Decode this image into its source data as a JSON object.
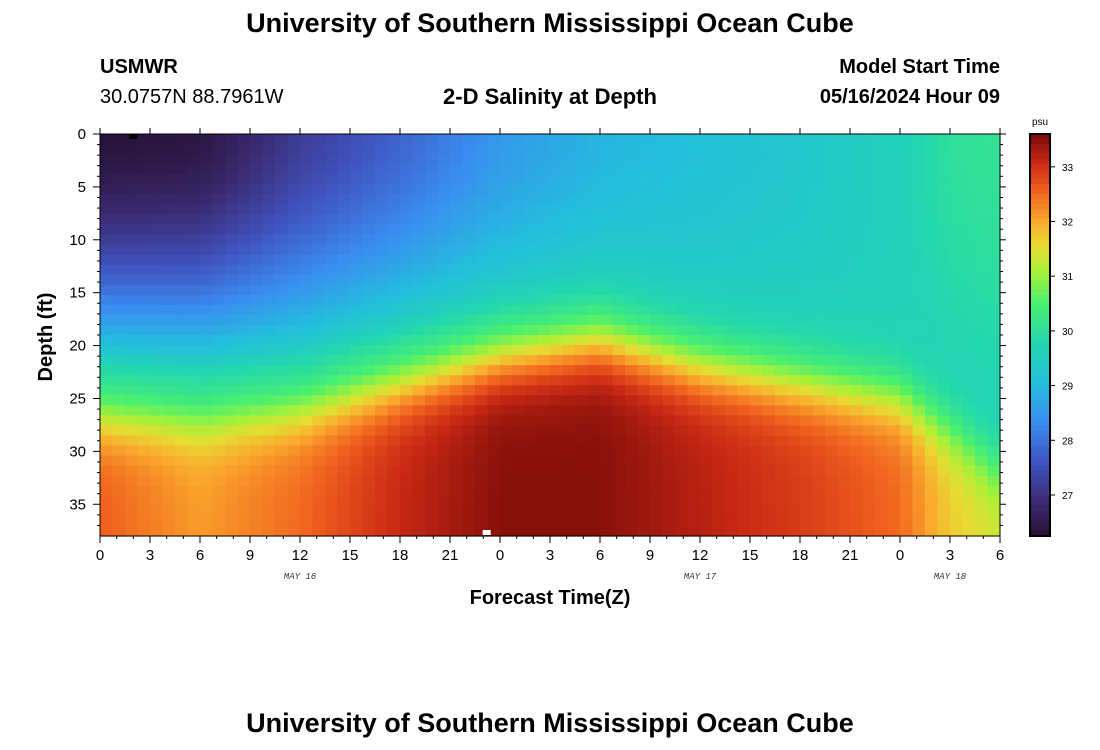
{
  "header": {
    "title": "University of Southern Mississippi Ocean Cube",
    "station": "USMWR",
    "coords": "30.0757N  88.7961W",
    "subtitle": "2-D Salinity at Depth",
    "model_start_label": "Model Start Time",
    "model_start_time": "05/16/2024 Hour 09"
  },
  "footer": {
    "title": "University of Southern Mississippi Ocean Cube"
  },
  "chart_data": {
    "type": "heatmap",
    "title": "2-D Salinity at Depth",
    "xlabel": "Forecast Time(Z)",
    "ylabel": "Depth (ft)",
    "x_range": [
      0,
      54
    ],
    "y_range": [
      0,
      38
    ],
    "y_inverted": true,
    "x_ticks": [
      "0",
      "3",
      "6",
      "9",
      "12",
      "15",
      "18",
      "21",
      "0",
      "3",
      "6",
      "9",
      "12",
      "15",
      "18",
      "21",
      "0",
      "3",
      "6"
    ],
    "y_ticks": [
      0,
      5,
      10,
      15,
      20,
      25,
      30,
      35
    ],
    "date_labels": [
      {
        "text": "MAY 16",
        "x_hour": 12
      },
      {
        "text": "MAY 17",
        "x_hour": 36
      },
      {
        "text": "MAY 18",
        "x_hour": 51
      }
    ],
    "colorbar": {
      "unit": "psu",
      "range": [
        26.25,
        33.6
      ],
      "ticks": [
        27,
        28,
        29,
        30,
        31,
        32,
        33
      ],
      "colormap": "turbo-like"
    },
    "halocline_depth_ft": [
      {
        "hour": 0,
        "depth": 22.5
      },
      {
        "hour": 6,
        "depth": 23
      },
      {
        "hour": 12,
        "depth": 22
      },
      {
        "hour": 18,
        "depth": 19.5
      },
      {
        "hour": 24,
        "depth": 17
      },
      {
        "hour": 30,
        "depth": 15.5
      },
      {
        "hour": 36,
        "depth": 18
      },
      {
        "hour": 42,
        "depth": 19.5
      },
      {
        "hour": 48,
        "depth": 21
      },
      {
        "hour": 51,
        "depth": 24
      },
      {
        "hour": 54,
        "depth": 28
      }
    ],
    "surface_salinity_psu": [
      {
        "hour": 0,
        "value": 26.3
      },
      {
        "hour": 6,
        "value": 26.4
      },
      {
        "hour": 12,
        "value": 27.2
      },
      {
        "hour": 18,
        "value": 27.8
      },
      {
        "hour": 24,
        "value": 28.5
      },
      {
        "hour": 30,
        "value": 28.9
      },
      {
        "hour": 36,
        "value": 29.1
      },
      {
        "hour": 42,
        "value": 29.3
      },
      {
        "hour": 48,
        "value": 29.6
      },
      {
        "hour": 51,
        "value": 30.0
      },
      {
        "hour": 54,
        "value": 30.1
      }
    ],
    "bottom_salinity_psu": [
      {
        "hour": 0,
        "value": 32.6
      },
      {
        "hour": 6,
        "value": 32.1
      },
      {
        "hour": 12,
        "value": 32.5
      },
      {
        "hour": 18,
        "value": 33.1
      },
      {
        "hour": 24,
        "value": 33.5
      },
      {
        "hour": 30,
        "value": 33.5
      },
      {
        "hour": 36,
        "value": 33.2
      },
      {
        "hour": 42,
        "value": 32.9
      },
      {
        "hour": 48,
        "value": 32.5
      },
      {
        "hour": 51,
        "value": 31.7
      },
      {
        "hour": 54,
        "value": 31.4
      }
    ]
  }
}
